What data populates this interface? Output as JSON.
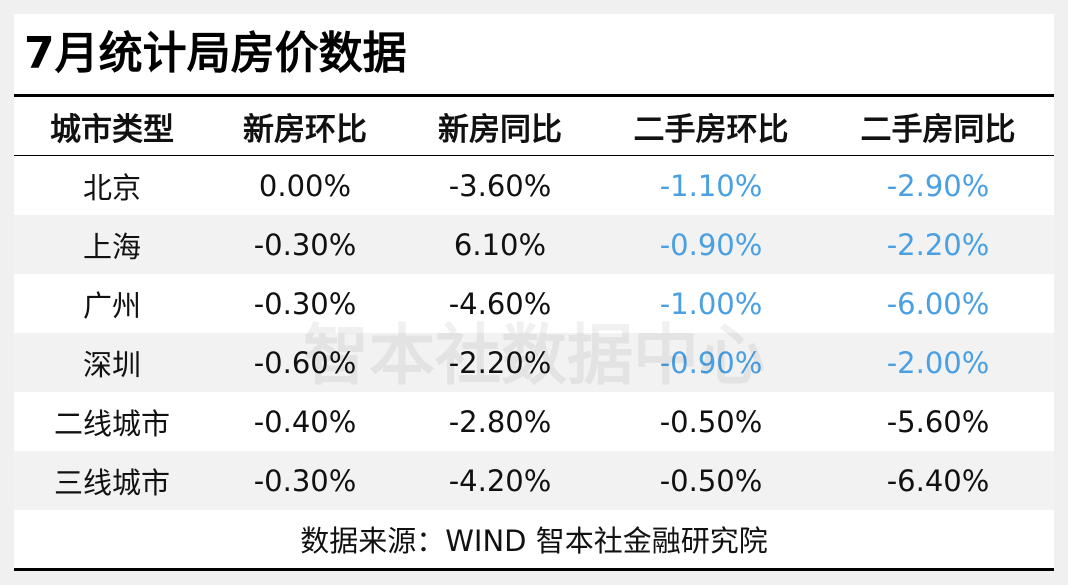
{
  "header": {
    "title": "7月统计局房价数据"
  },
  "table": {
    "columns": [
      "城市类型",
      "新房环比",
      "新房同比",
      "二手房环比",
      "二手房同比"
    ],
    "rows": [
      [
        "北京",
        "0.00%",
        "-3.60%",
        "-1.10%",
        "-2.90%"
      ],
      [
        "上海",
        "-0.30%",
        "6.10%",
        "-0.90%",
        "-2.20%"
      ],
      [
        "广州",
        "-0.30%",
        "-4.60%",
        "-1.00%",
        "-6.00%"
      ],
      [
        "深圳",
        "-0.60%",
        "-2.20%",
        "-0.90%",
        "-2.00%"
      ],
      [
        "二线城市",
        "-0.40%",
        "-2.80%",
        "-0.50%",
        "-5.60%"
      ],
      [
        "三线城市",
        "-0.30%",
        "-4.20%",
        "-0.50%",
        "-6.40%"
      ]
    ],
    "source": "数据来源：WIND 智本社金融研究院"
  },
  "watermark": "智本社数据中心"
}
